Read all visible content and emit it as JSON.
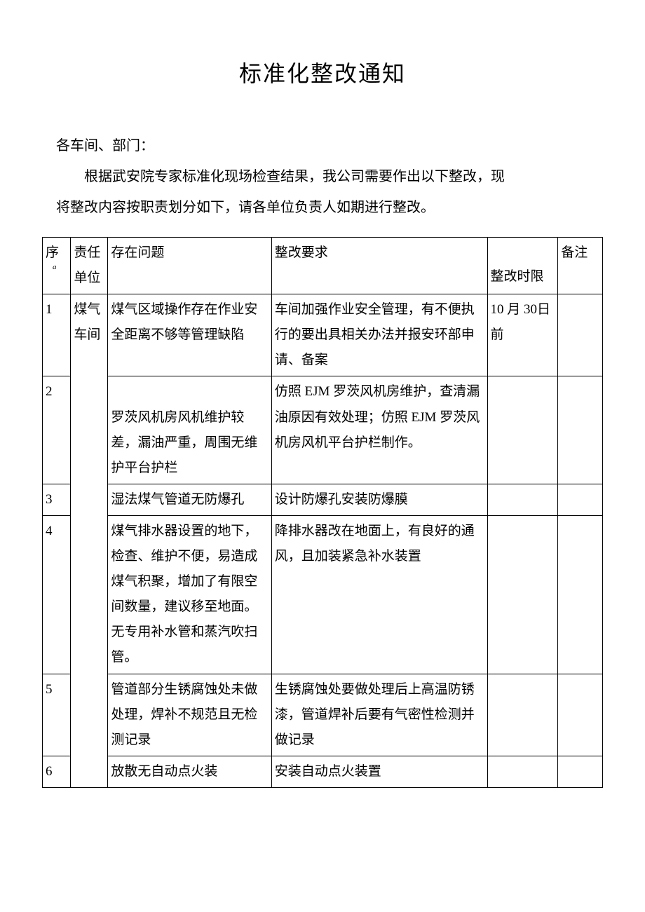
{
  "title": "标准化整改通知",
  "intro": {
    "line1": "各车间、部门：",
    "line2": "根据武安院专家标准化现场检查结果，我公司需要作出以下整改，现",
    "line3": "将整改内容按职责划分如下，请各单位负责人如期进行整改。"
  },
  "table": {
    "headers": {
      "seq": "序",
      "seq_sub": "a",
      "unit": "责任单位",
      "problem": "存在问题",
      "requirement": "整改要求",
      "deadline": "整改时限",
      "remark": "备注"
    },
    "rows": [
      {
        "seq": "1",
        "unit": "煤气车间",
        "problem": "煤气区域操作存在作业安全距离不够等管理缺陷",
        "requirement": "车间加强作业安全管理，有不便执行的要出具相关办法并报安环部申请、备案",
        "deadline": "10 月 30日前",
        "remark": ""
      },
      {
        "seq": "2",
        "unit": "",
        "problem": "罗茨风机房风机维护较差，漏油严重，周围无维护平台护栏",
        "requirement": "仿照 EJM 罗茨风机房维护，查清漏油原因有效处理；仿照 EJM 罗茨风机房风机平台护栏制作。",
        "deadline": "",
        "remark": ""
      },
      {
        "seq": "3",
        "unit": "",
        "problem": "湿法煤气管道无防爆孔",
        "requirement": "设计防爆孔安装防爆膜",
        "deadline": "",
        "remark": ""
      },
      {
        "seq": "4",
        "unit": "",
        "problem": "煤气排水器设置的地下，检查、维护不便，易造成煤气积聚，增加了有限空间数量，建议移至地面。无专用补水管和蒸汽吹扫管。",
        "requirement": "降排水器改在地面上，有良好的通风，且加装紧急补水装置",
        "deadline": "",
        "remark": ""
      },
      {
        "seq": "5",
        "unit": "",
        "problem": "管道部分生锈腐蚀处未做处理，焊补不规范且无检测记录",
        "requirement": "生锈腐蚀处要做处理后上高温防锈漆，管道焊补后要有气密性检测并做记录",
        "deadline": "",
        "remark": ""
      },
      {
        "seq": "6",
        "unit": "",
        "problem": "放散无自动点火装",
        "requirement": "安装自动点火装置",
        "deadline": "",
        "remark": ""
      }
    ]
  }
}
